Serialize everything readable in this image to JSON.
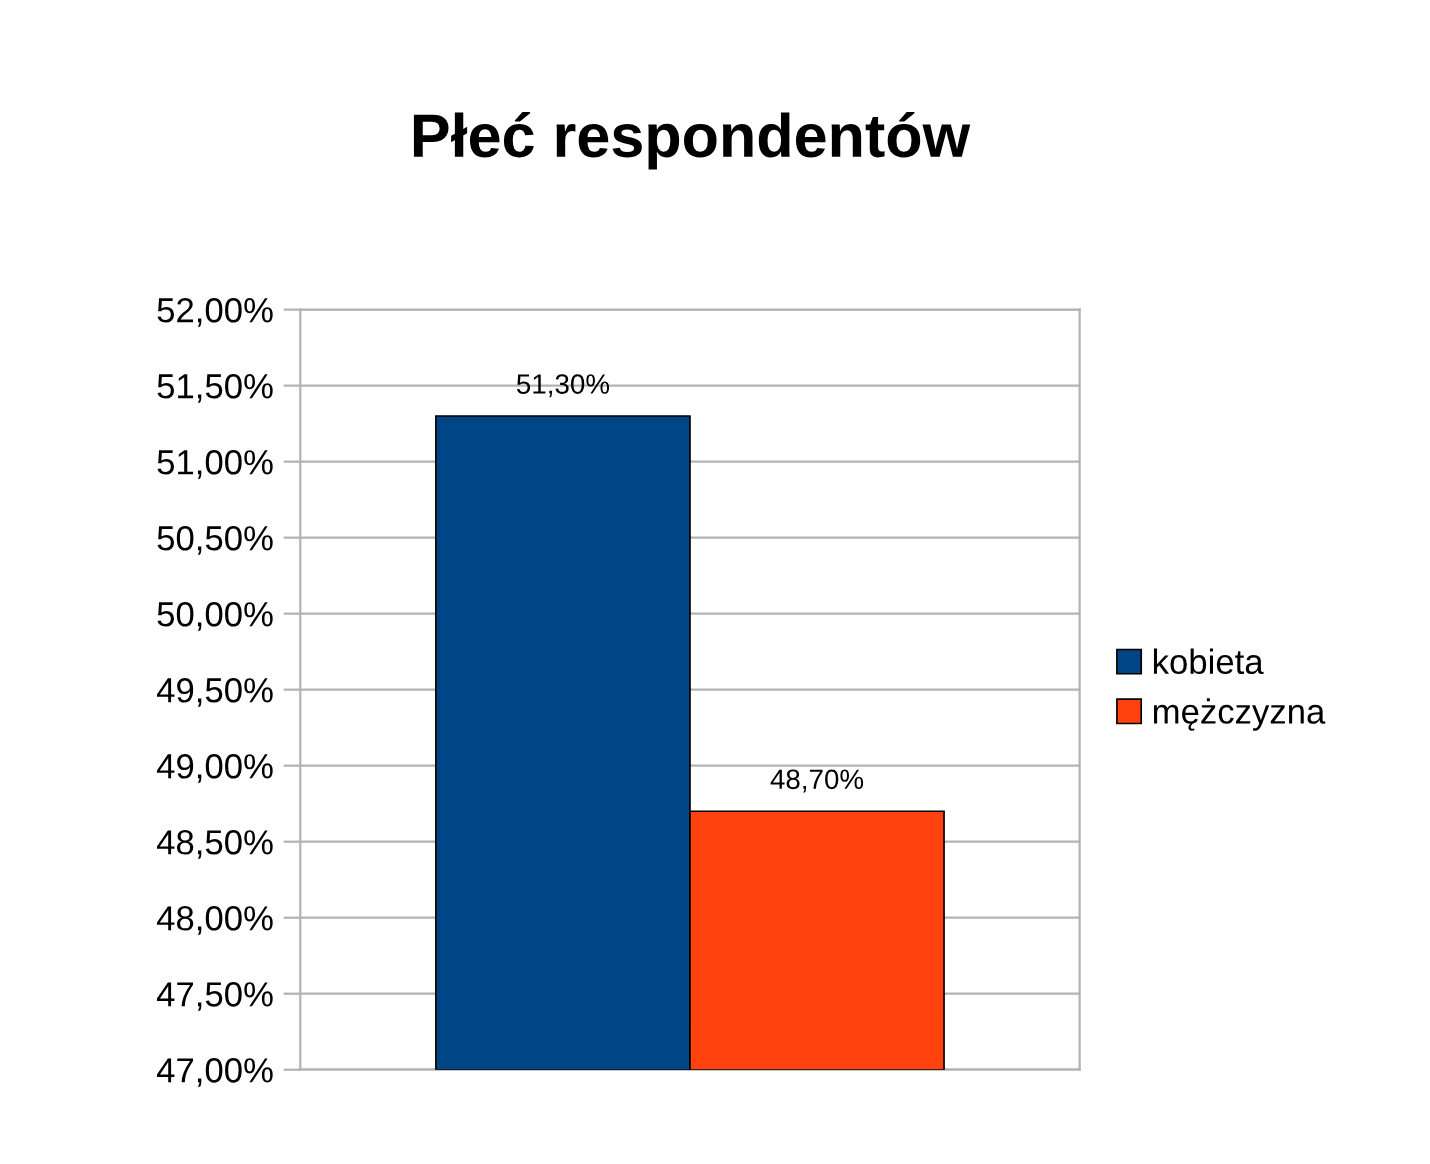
{
  "chart_data": {
    "type": "bar",
    "title": "Płeć respondentów",
    "categories": [
      null
    ],
    "series": [
      {
        "name": "kobieta",
        "color": "#004586",
        "values": [
          51.3
        ],
        "value_labels": [
          "51,30%"
        ]
      },
      {
        "name": "mężczyzna",
        "color": "#ff420e",
        "values": [
          48.7
        ],
        "value_labels": [
          "48,70%"
        ]
      }
    ],
    "ylim": [
      47,
      52
    ],
    "yticks": [
      {
        "value": 47,
        "label": "47,00%"
      },
      {
        "value": 47.5,
        "label": "47,50%"
      },
      {
        "value": 48,
        "label": "48,00%"
      },
      {
        "value": 48.5,
        "label": "48,50%"
      },
      {
        "value": 49,
        "label": "49,00%"
      },
      {
        "value": 49.5,
        "label": "49,50%"
      },
      {
        "value": 50,
        "label": "50,00%"
      },
      {
        "value": 50.5,
        "label": "50,50%"
      },
      {
        "value": 51,
        "label": "51,00%"
      },
      {
        "value": 51.5,
        "label": "51,50%"
      },
      {
        "value": 52,
        "label": "52,00%"
      }
    ],
    "grid": "y",
    "legend": "right"
  }
}
